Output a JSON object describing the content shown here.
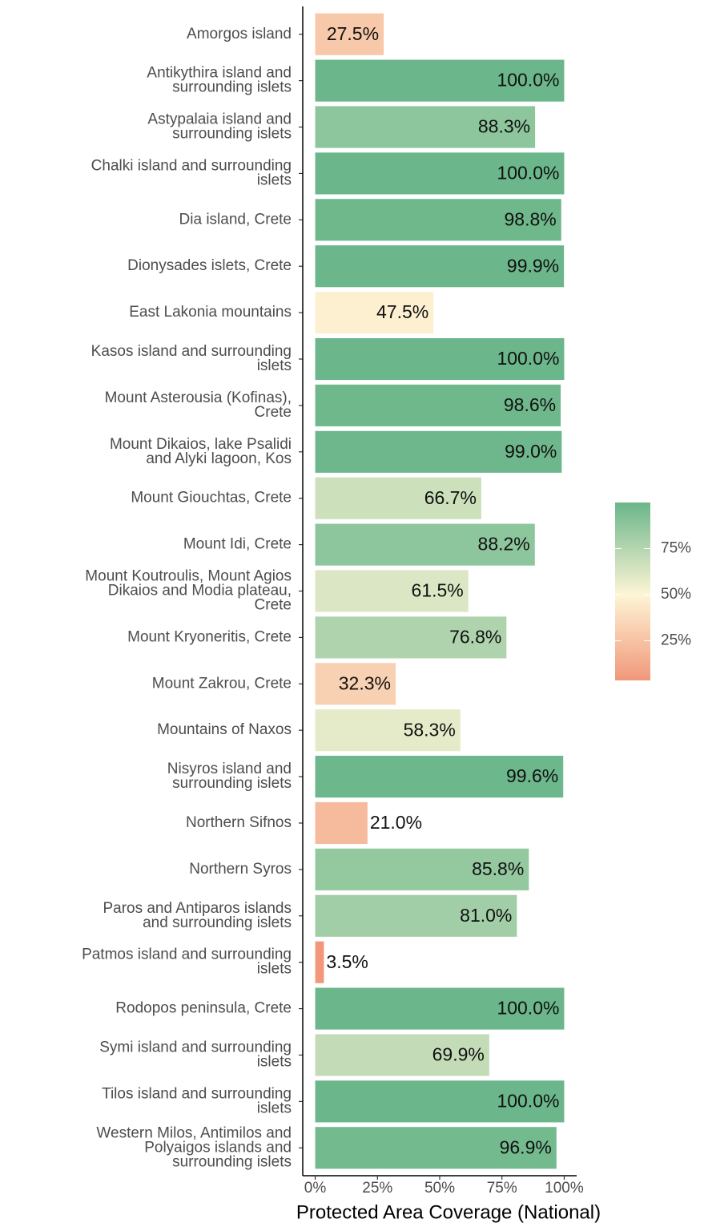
{
  "chart_data": {
    "type": "bar",
    "orientation": "horizontal",
    "x_label": "Protected Area Coverage (National)",
    "categories": [
      "Amorgos island",
      "Antikythira island and\nsurrounding islets",
      "Astypalaia island and\nsurrounding islets",
      "Chalki island and surrounding\nislets",
      "Dia island, Crete",
      "Dionysades islets, Crete",
      "East Lakonia mountains",
      "Kasos island and surrounding\nislets",
      "Mount Asterousia (Kofinas),\nCrete",
      "Mount Dikaios, lake Psalidi\nand Alyki lagoon, Kos",
      "Mount Giouchtas, Crete",
      "Mount Idi, Crete",
      "Mount Koutroulis, Mount Agios\nDikaios and Modia plateau,\nCrete",
      "Mount Kryoneritis, Crete",
      "Mount Zakrou, Crete",
      "Mountains of Naxos",
      "Nisyros island and\nsurrounding islets",
      "Northern Sifnos",
      "Northern Syros",
      "Paros and Antiparos islands\nand surrounding islets",
      "Patmos island and surrounding\nislets",
      "Rodopos peninsula, Crete",
      "Symi island and surrounding\nislets",
      "Tilos island and surrounding\nislets",
      "Western Milos, Antimilos and\nPolyaigos islands and\nsurrounding islets"
    ],
    "values": [
      27.5,
      100,
      88.3,
      100,
      98.8,
      99.9,
      47.5,
      100,
      98.6,
      99.0,
      66.7,
      88.2,
      61.5,
      76.8,
      32.3,
      58.3,
      99.6,
      21.0,
      85.8,
      81.0,
      3.5,
      100,
      69.9,
      100,
      96.9
    ],
    "value_labels": [
      "27.5%",
      "100.0%",
      "88.3%",
      "100.0%",
      "98.8%",
      "99.9%",
      "47.5%",
      "100.0%",
      "98.6%",
      "99.0%",
      "66.7%",
      "88.2%",
      "61.5%",
      "76.8%",
      "32.3%",
      "58.3%",
      "99.6%",
      "21.0%",
      "85.8%",
      "81.0%",
      "3.5%",
      "100.0%",
      "69.9%",
      "100.0%",
      "96.9%"
    ],
    "xlim": [
      -5,
      105
    ],
    "xticks": [
      {
        "value": 0,
        "label": "0%"
      },
      {
        "value": 25,
        "label": "25%"
      },
      {
        "value": 50,
        "label": "50%"
      },
      {
        "value": 75,
        "label": "75%"
      },
      {
        "value": 100,
        "label": "100%"
      }
    ],
    "color_scale": {
      "colors": [
        "#f1977a",
        "#fdf5d5",
        "#6bb68a"
      ],
      "midpoint": 50
    },
    "legend_ticks": [
      {
        "value": 25,
        "label": "25%"
      },
      {
        "value": 50,
        "label": "50%"
      },
      {
        "value": 75,
        "label": "75%"
      }
    ],
    "legend_position": "right"
  }
}
